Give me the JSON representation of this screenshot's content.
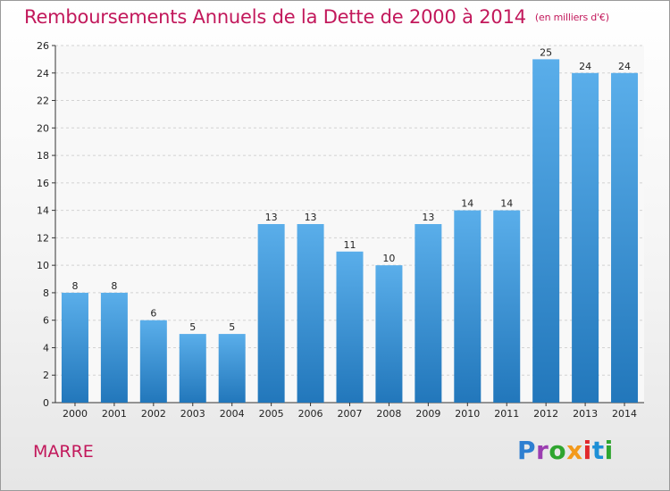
{
  "header": {
    "title": "Remboursements Annuels de la Dette de 2000 à 2014",
    "subtitle": "(en milliers d'€)"
  },
  "footer": {
    "commune": "MARRE",
    "logo_letters": [
      "P",
      "r",
      "o",
      "x",
      "i",
      "t",
      "i"
    ]
  },
  "colors": {
    "accent": "#c2185b",
    "bar_top": "#5aaeea",
    "bar_bottom": "#2277bb"
  },
  "chart_data": {
    "type": "bar",
    "categories": [
      "2000",
      "2001",
      "2002",
      "2003",
      "2004",
      "2005",
      "2006",
      "2007",
      "2008",
      "2009",
      "2010",
      "2011",
      "2012",
      "2013",
      "2014"
    ],
    "values": [
      8,
      8,
      6,
      5,
      5,
      13,
      13,
      11,
      10,
      13,
      14,
      14,
      25,
      24,
      24
    ],
    "data_labels": [
      "8",
      "8",
      "6",
      "5",
      "5",
      "13",
      "13",
      "11",
      "10",
      "13",
      "14",
      "14",
      "25",
      "24",
      "24"
    ],
    "title": "Remboursements Annuels de la Dette de 2000 à 2014",
    "subtitle": "(en milliers d'€)",
    "xlabel": "",
    "ylabel": "",
    "ylim": [
      0,
      26
    ],
    "yticks": [
      0,
      2,
      4,
      6,
      8,
      10,
      12,
      14,
      16,
      18,
      20,
      22,
      24,
      26
    ],
    "grid": true,
    "legend": "none"
  }
}
